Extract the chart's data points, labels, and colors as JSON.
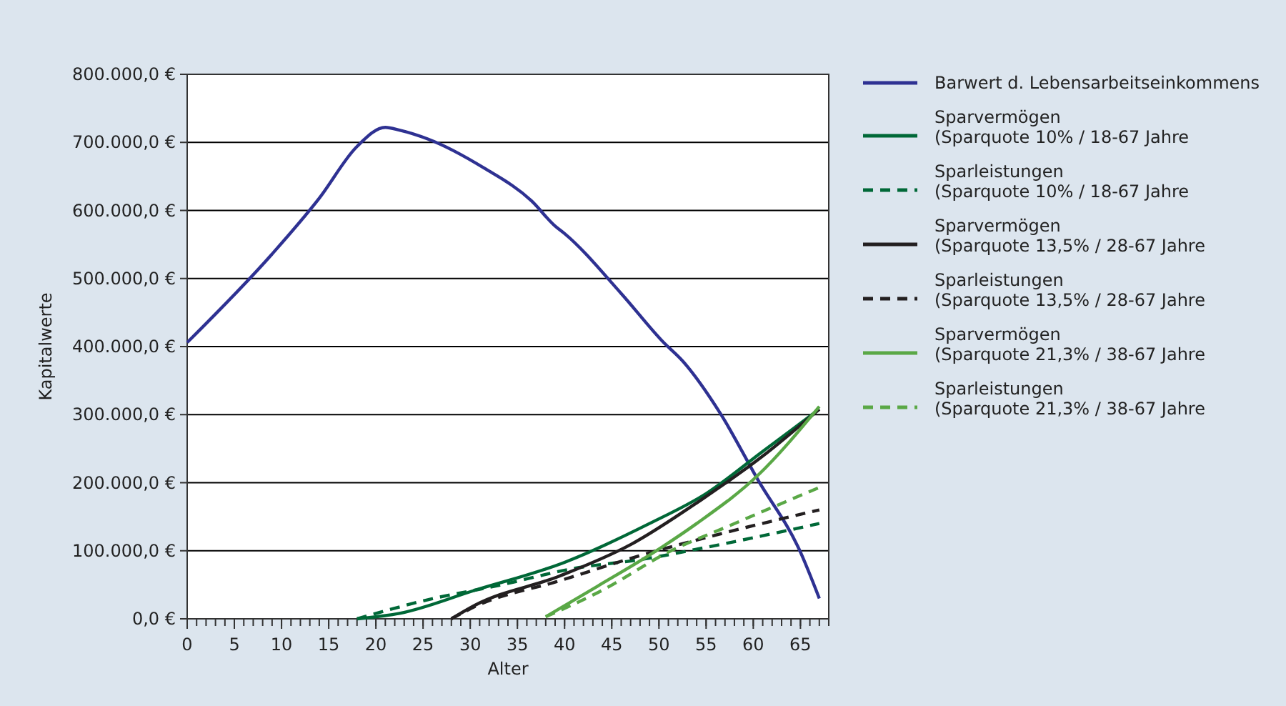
{
  "chart_data": {
    "type": "line",
    "xlabel": "Alter",
    "ylabel": "Kapitalwerte",
    "xlim": [
      0,
      68
    ],
    "xticks": [
      0,
      5,
      10,
      15,
      20,
      25,
      30,
      35,
      40,
      45,
      50,
      55,
      60,
      65
    ],
    "ylim": [
      0,
      800000
    ],
    "yticks": [
      {
        "value": 0,
        "label": "0,0 €"
      },
      {
        "value": 100000,
        "label": "100.000,0 €"
      },
      {
        "value": 200000,
        "label": "200.000,0 €"
      },
      {
        "value": 300000,
        "label": "300.000,0 €"
      },
      {
        "value": 400000,
        "label": "400.000,0 €"
      },
      {
        "value": 500000,
        "label": "500.000,0 €"
      },
      {
        "value": 600000,
        "label": "600.000,0 €"
      },
      {
        "value": 700000,
        "label": "700.000,0 €"
      },
      {
        "value": 800000,
        "label": "800.000,0 €"
      }
    ],
    "grid": "y",
    "legend": "right",
    "marker": "none",
    "series": [
      {
        "name": "Barwert d. Lebensarbeitseinkommens",
        "color": "#2e3192",
        "line_style": "solid",
        "x": [
          0,
          9,
          14,
          18,
          21,
          22.5,
          25.5,
          31.5,
          36.5,
          39,
          40,
          46,
          50.5,
          52.5,
          56.5,
          60.5,
          65,
          67
        ],
        "values": [
          406000,
          536000,
          618000,
          694000,
          722000,
          718000,
          705000,
          662000,
          614000,
          577000,
          566000,
          478000,
          406000,
          379000,
          302000,
          204000,
          98000,
          30000
        ]
      },
      {
        "name": "Sparvermögen\n(Sparquote 10% / 18-67 Jahre",
        "color": "#006837",
        "line_style": "solid",
        "x": [
          18,
          22.5,
          30.5,
          40,
          49,
          55,
          61,
          67
        ],
        "values": [
          0,
          8000,
          42000,
          83000,
          140000,
          184000,
          246000,
          308000
        ]
      },
      {
        "name": "Sparleistungen\n(Sparquote 10% / 18-67 Jahre",
        "color": "#006837",
        "line_style": "dashed",
        "x": [
          18,
          25.5,
          33,
          41,
          48.5,
          55,
          67
        ],
        "values": [
          0,
          28000,
          49000,
          74000,
          88000,
          105000,
          140000
        ]
      },
      {
        "name": "Sparvermögen\n(Sparquote 13,5% / 28-67 Jahre",
        "color": "#231f20",
        "line_style": "solid",
        "x": [
          28,
          30.5,
          39.5,
          47,
          54.5,
          61,
          67
        ],
        "values": [
          0,
          20000,
          63000,
          109000,
          175000,
          239000,
          308000
        ]
      },
      {
        "name": "Sparleistungen\n(Sparquote 13,5% / 28-67 Jahre",
        "color": "#231f20",
        "line_style": "dashed",
        "x": [
          28,
          30.5,
          39.5,
          48.5,
          56,
          67
        ],
        "values": [
          0,
          18000,
          56000,
          95000,
          123000,
          160000
        ]
      },
      {
        "name": "Sparvermögen\n(Sparquote 21,3% / 38-67 Jahre",
        "color": "#5aa846",
        "line_style": "solid",
        "x": [
          38,
          43.5,
          49.5,
          54,
          60.5,
          67
        ],
        "values": [
          3000,
          48000,
          98000,
          140000,
          211000,
          312000
        ]
      },
      {
        "name": "Sparleistungen\n(Sparquote 21,3% / 38-67 Jahre",
        "color": "#5aa846",
        "line_style": "dashed",
        "x": [
          38,
          44,
          51,
          57.5,
          67
        ],
        "values": [
          3000,
          42000,
          98000,
          137000,
          193000
        ]
      }
    ]
  }
}
